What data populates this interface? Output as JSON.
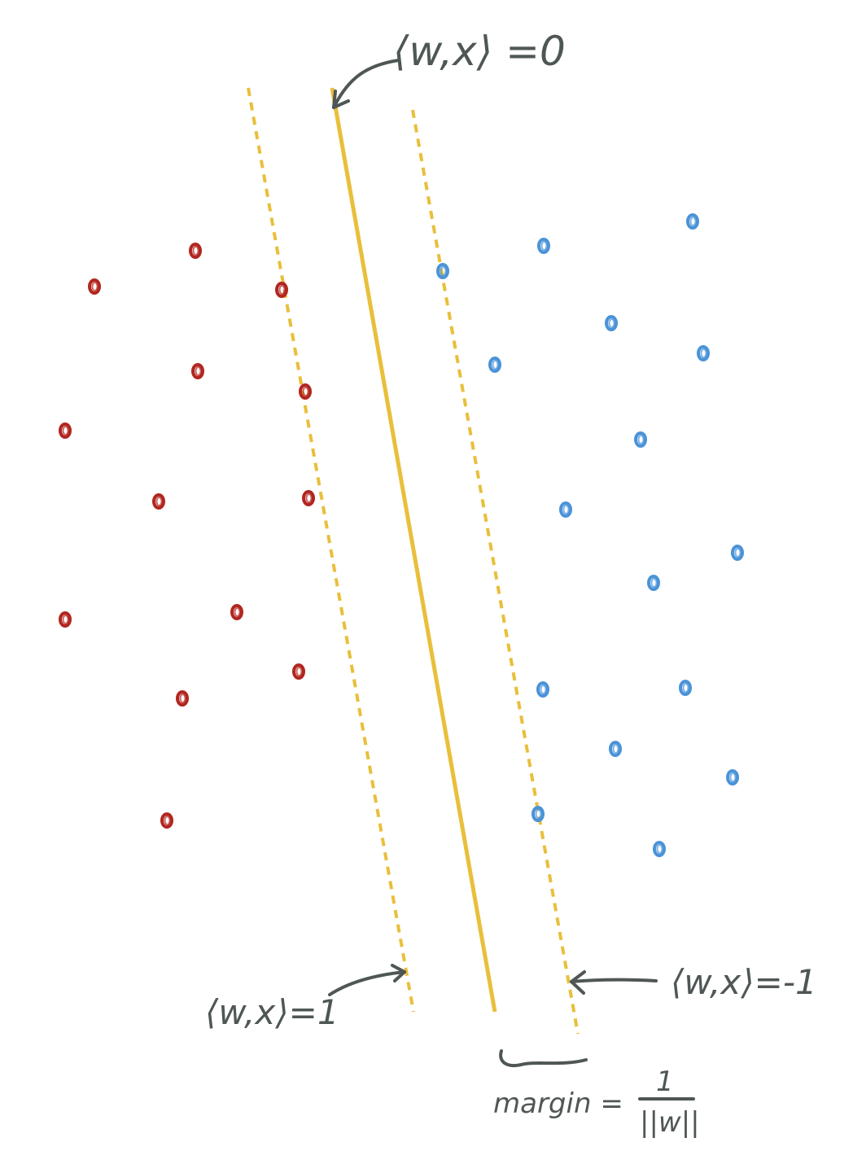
{
  "colors": {
    "class_positive": "#b2261f",
    "class_negative": "#4a93d8",
    "hyperplane": "#e9bf3b",
    "annotation": "#4f5756",
    "background": "#ffffff"
  },
  "labels": {
    "decision_boundary": "⟨w,x⟩ =0",
    "positive_margin": "⟨w,x⟩=1",
    "negative_margin": "⟨w,x⟩=-1",
    "margin_text": "margin =",
    "margin_numerator": "1",
    "margin_denominator": "||w||"
  },
  "icons": {
    "decision_arrow": "curved-arrow-icon",
    "positive_arrow": "curved-arrow-icon",
    "negative_arrow": "left-arrow-icon",
    "margin_brace": "brace-icon"
  }
}
